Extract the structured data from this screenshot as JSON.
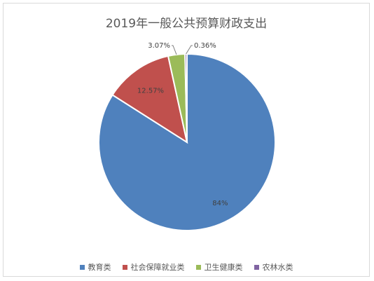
{
  "chart_data": {
    "type": "pie",
    "title": "2019年一般公共预算财政支出",
    "categories": [
      "教育类",
      "社会保障就业类",
      "卫生健康类",
      "农林水类"
    ],
    "values": [
      84,
      12.57,
      3.07,
      0.36
    ],
    "data_labels": [
      "84%",
      "12.57%",
      "3.07%",
      "0.36%"
    ],
    "colors": [
      "#4F81BD",
      "#C0504D",
      "#9BBB59",
      "#8064A2"
    ],
    "legend_position": "bottom"
  }
}
